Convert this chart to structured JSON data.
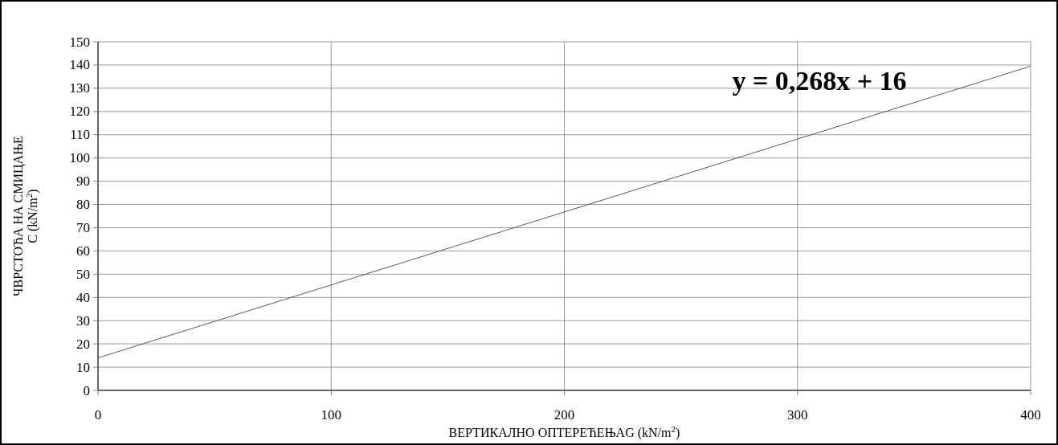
{
  "chart_data": {
    "type": "line",
    "xlabel": "ВЕРТИКАЛНО ОПТЕРЕЋЕЊАG (kN/m$^{2}$)",
    "ylabel": "ЧВРСТОЋА НА СМИЦАЊЕ\nC (kN/m$^{2}$)",
    "annotations": [
      "y = 0,268x + 16"
    ],
    "series": [
      {
        "color": "#595959",
        "x": [
          0,
          400
        ],
        "values": [
          14,
          139.5
        ]
      }
    ],
    "xlim": [
      0,
      400
    ],
    "xticks": [
      0,
      100,
      200,
      300,
      400
    ],
    "ylim": [
      0,
      150
    ],
    "yticks": [
      0,
      10,
      20,
      30,
      40,
      50,
      60,
      70,
      80,
      90,
      100,
      110,
      120,
      130,
      140,
      150
    ],
    "grid": true,
    "marker": "none",
    "line_style": "solid"
  }
}
